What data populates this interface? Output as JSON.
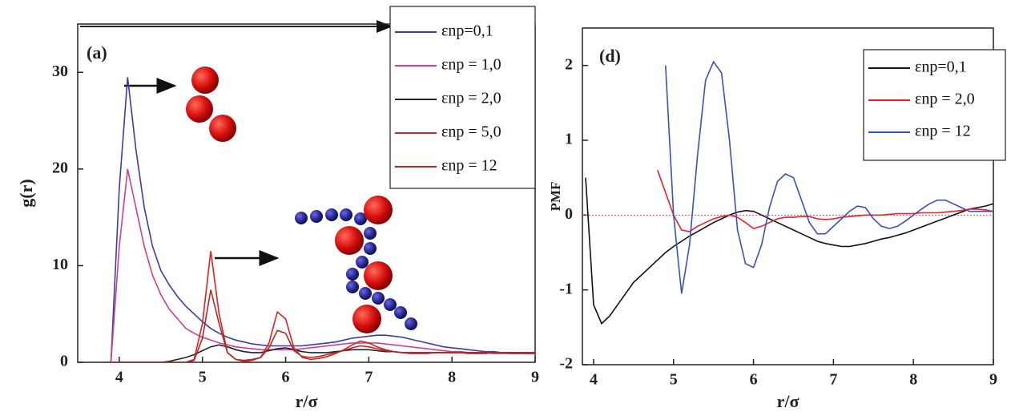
{
  "chart_data": [
    {
      "type": "line",
      "annotation": "(a)",
      "xlabel": "r/σ",
      "ylabel": "g(r)",
      "xlim": [
        3.5,
        9
      ],
      "ylim": [
        0,
        35
      ],
      "xticks": [
        4,
        5,
        6,
        7,
        8,
        9
      ],
      "yticks": [
        0,
        10,
        20,
        30
      ],
      "legend": "upper right",
      "x": [
        3.8,
        3.9,
        4.0,
        4.1,
        4.2,
        4.3,
        4.4,
        4.5,
        4.6,
        4.7,
        4.8,
        4.9,
        5.0,
        5.1,
        5.2,
        5.3,
        5.4,
        5.5,
        5.6,
        5.7,
        5.8,
        5.9,
        6.0,
        6.1,
        6.2,
        6.3,
        6.4,
        6.5,
        6.6,
        6.7,
        6.8,
        6.9,
        7.0,
        7.1,
        7.2,
        7.3,
        7.4,
        7.5,
        7.6,
        7.7,
        7.8,
        7.9,
        8.0,
        8.1,
        8.2,
        8.3,
        8.4,
        8.5,
        8.6,
        8.7,
        8.8,
        8.9,
        9.0
      ],
      "series": [
        {
          "name": "εnp=0,1",
          "color": "#3b3bab",
          "values": [
            0,
            0,
            18,
            29.5,
            22,
            16,
            12,
            9.5,
            8,
            6.8,
            5.8,
            5,
            4.2,
            3.5,
            3,
            2.6,
            2.3,
            2.1,
            1.9,
            1.8,
            1.7,
            1.7,
            1.7,
            1.7,
            1.7,
            1.8,
            1.9,
            2.0,
            2.1,
            2.3,
            2.5,
            2.6,
            2.7,
            2.8,
            2.8,
            2.7,
            2.6,
            2.4,
            2.2,
            2.0,
            1.8,
            1.6,
            1.5,
            1.4,
            1.3,
            1.2,
            1.1,
            1.1,
            1.0,
            1.0,
            1.0,
            0.9,
            0.9
          ]
        },
        {
          "name": "εnp = 1,0",
          "color": "#d0408a",
          "values": [
            0,
            0,
            12,
            20,
            16,
            12,
            9,
            7,
            5.5,
            4.5,
            3.5,
            3,
            2.6,
            2.3,
            2,
            1.8,
            1.6,
            1.5,
            1.4,
            1.3,
            1.3,
            1.3,
            1.3,
            1.3,
            1.4,
            1.5,
            1.6,
            1.7,
            1.8,
            1.9,
            2.0,
            2.0,
            2.0,
            2.0,
            1.9,
            1.8,
            1.7,
            1.6,
            1.5,
            1.4,
            1.3,
            1.2,
            1.1,
            1.1,
            1.0,
            1.0,
            1.0,
            0.9,
            0.9,
            0.9,
            0.9,
            0.9,
            0.9
          ]
        },
        {
          "name": "εnp = 2,0",
          "color": "#222222",
          "values": [
            0,
            0,
            0,
            0,
            0,
            0,
            0,
            0,
            0.1,
            0.3,
            0.5,
            0.8,
            1.2,
            1.6,
            1.8,
            1.6,
            1.3,
            1.1,
            1.0,
            1.0,
            1.2,
            1.4,
            1.5,
            1.3,
            1.1,
            1.0,
            1.0,
            1.0,
            1.1,
            1.2,
            1.3,
            1.3,
            1.3,
            1.2,
            1.1,
            1.1,
            1.0,
            1.0,
            1.0,
            1.0,
            1.0,
            1.0,
            1.0,
            1.0,
            1.0,
            1.0,
            1.0,
            1.0,
            1.0,
            1.0,
            1.0,
            1.0,
            1.0
          ]
        },
        {
          "name": "εnp = 5,0",
          "color": "#e02020",
          "values": [
            0,
            0,
            0,
            0,
            0,
            0,
            0,
            0,
            0,
            0,
            0,
            0.3,
            4,
            11.5,
            5,
            1,
            0.3,
            0.1,
            0.2,
            0.5,
            2,
            5.2,
            4.5,
            1.5,
            0.5,
            0.3,
            0.4,
            0.6,
            0.9,
            1.3,
            1.8,
            2.2,
            2.0,
            1.6,
            1.3,
            1.1,
            1.0,
            0.9,
            0.9,
            0.9,
            1.0,
            1.0,
            1.0,
            1.0,
            0.9,
            0.9,
            0.9,
            1.0,
            1.0,
            0.9,
            0.9,
            0.9,
            0.9
          ]
        },
        {
          "name": "εnp = 12",
          "color": "#b02828",
          "values": [
            0,
            0,
            0,
            0,
            0,
            0,
            0,
            0,
            0,
            0,
            0,
            0.2,
            2.5,
            7.5,
            4,
            1,
            0.3,
            0.2,
            0.3,
            0.5,
            1.5,
            3.3,
            3,
            1.2,
            0.6,
            0.5,
            0.6,
            0.8,
            1.0,
            1.2,
            1.5,
            1.7,
            1.6,
            1.4,
            1.2,
            1.1,
            1.0,
            1.0,
            1.0,
            1.0,
            1.0,
            1.0,
            1.0,
            1.0,
            1.0,
            1.0,
            1.0,
            1.0,
            1.0,
            1.0,
            1.0,
            1.0,
            1.0
          ]
        }
      ]
    },
    {
      "type": "line",
      "annotation": "(d)",
      "xlabel": "r/σ",
      "ylabel": "PMF",
      "xlim": [
        3.86,
        9
      ],
      "ylim": [
        -2,
        2.5
      ],
      "xticks": [
        4,
        5,
        6,
        7,
        8,
        9
      ],
      "yticks": [
        -2,
        -1,
        0,
        1,
        2
      ],
      "legend": "upper right",
      "hlines": [
        {
          "value": 0,
          "color": "#e05050"
        }
      ],
      "x": [
        3.9,
        4.0,
        4.1,
        4.2,
        4.3,
        4.4,
        4.5,
        4.6,
        4.7,
        4.8,
        4.9,
        5.0,
        5.1,
        5.2,
        5.3,
        5.4,
        5.5,
        5.6,
        5.7,
        5.8,
        5.9,
        6.0,
        6.1,
        6.2,
        6.3,
        6.4,
        6.5,
        6.6,
        6.7,
        6.8,
        6.9,
        7.0,
        7.1,
        7.2,
        7.3,
        7.4,
        7.5,
        7.6,
        7.7,
        7.8,
        7.9,
        8.0,
        8.1,
        8.2,
        8.3,
        8.4,
        8.5,
        8.6,
        8.7,
        8.8,
        8.9,
        9.0
      ],
      "series": [
        {
          "name": "εnp=0,1",
          "color": "#111111",
          "values": [
            0.5,
            -1.2,
            -1.45,
            -1.35,
            -1.2,
            -1.05,
            -0.9,
            -0.8,
            -0.7,
            -0.6,
            -0.5,
            -0.42,
            -0.35,
            -0.28,
            -0.22,
            -0.16,
            -0.1,
            -0.05,
            0,
            0.04,
            0.06,
            0.05,
            0.0,
            -0.05,
            -0.1,
            -0.15,
            -0.2,
            -0.25,
            -0.3,
            -0.35,
            -0.38,
            -0.4,
            -0.42,
            -0.42,
            -0.4,
            -0.38,
            -0.35,
            -0.32,
            -0.3,
            -0.27,
            -0.24,
            -0.2,
            -0.16,
            -0.12,
            -0.08,
            -0.04,
            0,
            0.04,
            0.08,
            0.1,
            0.12,
            0.15
          ]
        },
        {
          "name": "εnp = 2,0",
          "color": "#e8202a",
          "values": [
            null,
            null,
            null,
            null,
            null,
            null,
            null,
            null,
            null,
            0.6,
            0.3,
            0,
            -0.2,
            -0.22,
            -0.15,
            -0.1,
            -0.05,
            -0.02,
            0,
            -0.03,
            -0.1,
            -0.18,
            -0.15,
            -0.1,
            -0.05,
            -0.03,
            -0.03,
            -0.02,
            -0.02,
            -0.05,
            -0.06,
            -0.05,
            -0.03,
            -0.02,
            -0.01,
            0,
            0,
            0,
            0.01,
            0.02,
            0.02,
            0.02,
            0.03,
            0.03,
            0.03,
            0.04,
            0.05,
            0.06,
            0.08,
            0.08,
            0.07,
            0.05
          ]
        },
        {
          "name": "εnp = 12",
          "color": "#3a4fb8",
          "values": [
            null,
            null,
            null,
            null,
            null,
            null,
            null,
            null,
            null,
            null,
            2.0,
            0,
            -1.05,
            -0.4,
            0.8,
            1.8,
            2.05,
            1.9,
            1.0,
            -0.2,
            -0.65,
            -0.7,
            -0.4,
            0.1,
            0.45,
            0.55,
            0.5,
            0.2,
            -0.1,
            -0.25,
            -0.25,
            -0.15,
            -0.05,
            0.05,
            0.12,
            0.1,
            -0.05,
            -0.15,
            -0.18,
            -0.15,
            -0.08,
            0.0,
            0.08,
            0.15,
            0.2,
            0.2,
            0.15,
            0.1,
            0.05,
            0.05,
            0.05,
            0.05
          ]
        }
      ]
    }
  ]
}
